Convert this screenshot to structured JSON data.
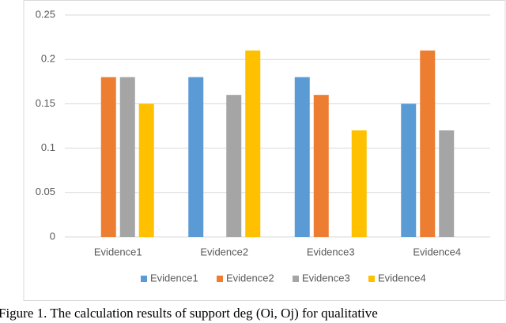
{
  "chart_data": {
    "type": "bar",
    "categories": [
      "Evidence1",
      "Evidence2",
      "Evidence3",
      "Evidence4"
    ],
    "series": [
      {
        "name": "Evidence1",
        "color": "#5b9bd5",
        "values": [
          0,
          0.18,
          0.18,
          0.15
        ]
      },
      {
        "name": "Evidence2",
        "color": "#ed7d31",
        "values": [
          0.18,
          0,
          0.16,
          0.21
        ]
      },
      {
        "name": "Evidence3",
        "color": "#a5a5a5",
        "values": [
          0.18,
          0.16,
          0,
          0.12
        ]
      },
      {
        "name": "Evidence4",
        "color": "#ffc000",
        "values": [
          0.15,
          0.21,
          0.12,
          0
        ]
      }
    ],
    "ylim": [
      0,
      0.25
    ],
    "yticks": [
      0,
      0.05,
      0.1,
      0.15,
      0.2,
      0.25
    ],
    "grid": true,
    "legend": "bottom",
    "caption": "Figure 1. The calculation results of support deg (Oi, Oj) for qualitative"
  }
}
